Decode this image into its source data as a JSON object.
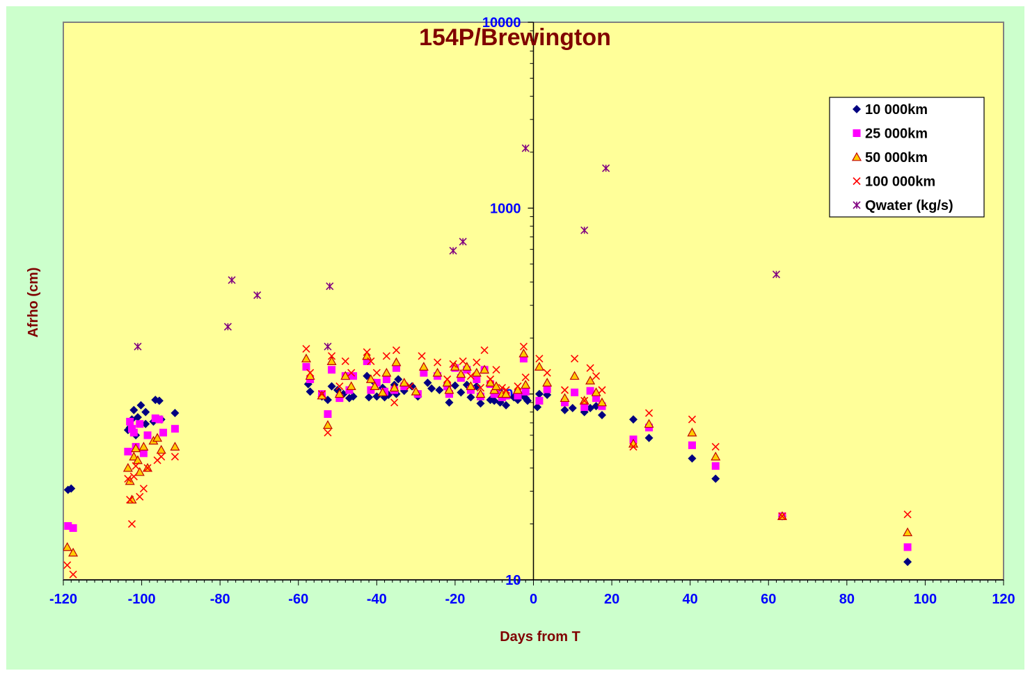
{
  "chart_data": {
    "type": "scatter",
    "title": "154P/Brewington",
    "xlabel": "Days from T",
    "ylabel": "Afrho (cm)",
    "xlim": [
      -120,
      120
    ],
    "ylim": [
      10,
      10000
    ],
    "y_scale": "log",
    "x_ticks": [
      "-120",
      "-100",
      "-80",
      "-60",
      "-40",
      "-20",
      "0",
      "20",
      "40",
      "60",
      "80",
      "100",
      "120"
    ],
    "y_ticks": [
      "10",
      "100",
      "1000",
      "10000"
    ],
    "grid": false,
    "legend_position": "top-right",
    "colors": {
      "outer_background": "#ccffcc",
      "plot_background": "#ffff99",
      "title": "#800000",
      "axis_label": "#800000",
      "tick_label": "#0000ff"
    },
    "series": [
      {
        "name": "10 000km",
        "marker": "diamond",
        "color": "#000080",
        "points": [
          [
            -118.8,
            30.5
          ],
          [
            -118,
            31
          ],
          [
            -103.5,
            64
          ],
          [
            -103,
            66
          ],
          [
            -102.5,
            73
          ],
          [
            -102,
            82
          ],
          [
            -101.5,
            60
          ],
          [
            -101,
            75
          ],
          [
            -100.2,
            87
          ],
          [
            -99,
            69
          ],
          [
            -99,
            80
          ],
          [
            -97,
            71
          ],
          [
            -96.5,
            93
          ],
          [
            -95.5,
            92
          ],
          [
            -95,
            73
          ],
          [
            -91.5,
            79
          ],
          [
            -57.5,
            113
          ],
          [
            -57,
            103
          ],
          [
            -54,
            97
          ],
          [
            -52.5,
            93
          ],
          [
            -51.5,
            110
          ],
          [
            -50,
            105
          ],
          [
            -49.5,
            96
          ],
          [
            -48.5,
            100
          ],
          [
            -47,
            95
          ],
          [
            -46,
            97
          ],
          [
            -42.5,
            125
          ],
          [
            -42,
            96
          ],
          [
            -40.5,
            115
          ],
          [
            -40,
            97
          ],
          [
            -38.5,
            108
          ],
          [
            -38,
            96
          ],
          [
            -37,
            99
          ],
          [
            -35.5,
            112
          ],
          [
            -35,
            100
          ],
          [
            -34.5,
            120
          ],
          [
            -33,
            104
          ],
          [
            -31,
            110
          ],
          [
            -29.5,
            97
          ],
          [
            -27,
            115
          ],
          [
            -26,
            107
          ],
          [
            -24,
            105
          ],
          [
            -21.5,
            90
          ],
          [
            -20,
            111
          ],
          [
            -18.5,
            102
          ],
          [
            -17,
            112
          ],
          [
            -16,
            96
          ],
          [
            -14.5,
            110
          ],
          [
            -13.5,
            89
          ],
          [
            -11,
            93
          ],
          [
            -10,
            92
          ],
          [
            -8.5,
            90
          ],
          [
            -8,
            94
          ],
          [
            -7,
            87
          ],
          [
            -5,
            96
          ],
          [
            -4,
            93
          ],
          [
            -3.5,
            97
          ],
          [
            -2.5,
            100
          ],
          [
            -2,
            95
          ],
          [
            -1.5,
            92
          ],
          [
            1,
            85
          ],
          [
            1.5,
            100
          ],
          [
            3.5,
            99
          ],
          [
            8,
            82
          ],
          [
            10,
            84
          ],
          [
            13,
            80
          ],
          [
            14.5,
            84
          ],
          [
            16,
            86
          ],
          [
            17.5,
            77
          ],
          [
            25.5,
            73
          ],
          [
            29.5,
            58
          ],
          [
            40.5,
            45
          ],
          [
            46.5,
            35
          ],
          [
            63.5,
            22
          ],
          [
            95.5,
            12.5
          ]
        ]
      },
      {
        "name": "25 000km",
        "marker": "square",
        "color": "#ff00ff",
        "points": [
          [
            -118.8,
            19.5
          ],
          [
            -117.5,
            19
          ],
          [
            -103.5,
            49
          ],
          [
            -103,
            71
          ],
          [
            -102.5,
            65
          ],
          [
            -102,
            62
          ],
          [
            -101.5,
            52
          ],
          [
            -100.5,
            69
          ],
          [
            -99.5,
            48
          ],
          [
            -98.5,
            60
          ],
          [
            -96.5,
            74
          ],
          [
            -95.5,
            73
          ],
          [
            -94.5,
            62
          ],
          [
            -91.5,
            65
          ],
          [
            -58,
            140
          ],
          [
            -57,
            120
          ],
          [
            -54,
            100
          ],
          [
            -52.5,
            78
          ],
          [
            -51.5,
            135
          ],
          [
            -49.5,
            95
          ],
          [
            -48,
            125
          ],
          [
            -47,
            105
          ],
          [
            -46,
            125
          ],
          [
            -42.5,
            150
          ],
          [
            -41.5,
            105
          ],
          [
            -40,
            115
          ],
          [
            -38,
            103
          ],
          [
            -37.5,
            120
          ],
          [
            -35.5,
            105
          ],
          [
            -35,
            138
          ],
          [
            -33,
            110
          ],
          [
            -29.5,
            100
          ],
          [
            -28,
            130
          ],
          [
            -24.5,
            125
          ],
          [
            -22,
            110
          ],
          [
            -21.5,
            100
          ],
          [
            -20,
            138
          ],
          [
            -18.5,
            122
          ],
          [
            -17,
            135
          ],
          [
            -16,
            105
          ],
          [
            -14.5,
            120
          ],
          [
            -13.5,
            97
          ],
          [
            -12.5,
            135
          ],
          [
            -11,
            113
          ],
          [
            -10,
            100
          ],
          [
            -9.5,
            100
          ],
          [
            -8,
            96
          ],
          [
            -7,
            98
          ],
          [
            -4,
            98
          ],
          [
            -2.5,
            155
          ],
          [
            -2,
            103
          ],
          [
            1.5,
            92
          ],
          [
            3.5,
            106
          ],
          [
            8,
            90
          ],
          [
            10.5,
            102
          ],
          [
            13,
            85
          ],
          [
            14.5,
            104
          ],
          [
            16,
            95
          ],
          [
            17.5,
            86
          ],
          [
            25.5,
            57
          ],
          [
            29.5,
            66
          ],
          [
            40.5,
            53
          ],
          [
            46.5,
            41
          ],
          [
            63.5,
            22
          ],
          [
            95.5,
            15
          ]
        ]
      },
      {
        "name": "50 000km",
        "marker": "triangle",
        "color": "#ffcc00",
        "edge_color": "#c00000",
        "points": [
          [
            -119,
            15
          ],
          [
            -117.5,
            14
          ],
          [
            -103.5,
            40
          ],
          [
            -103,
            34
          ],
          [
            -102.5,
            27
          ],
          [
            -102,
            46
          ],
          [
            -101.5,
            51
          ],
          [
            -101,
            44
          ],
          [
            -100.5,
            38
          ],
          [
            -99.5,
            52
          ],
          [
            -98.5,
            40
          ],
          [
            -97,
            56
          ],
          [
            -96,
            58
          ],
          [
            -95,
            50
          ],
          [
            -91.5,
            52
          ],
          [
            -58,
            155
          ],
          [
            -57,
            125
          ],
          [
            -54,
            98
          ],
          [
            -52.5,
            68
          ],
          [
            -51.5,
            150
          ],
          [
            -49.5,
            100
          ],
          [
            -48,
            125
          ],
          [
            -46.5,
            110
          ],
          [
            -42.5,
            160
          ],
          [
            -41.5,
            120
          ],
          [
            -40.5,
            110
          ],
          [
            -38.5,
            102
          ],
          [
            -37.5,
            130
          ],
          [
            -35.5,
            108
          ],
          [
            -35,
            148
          ],
          [
            -33,
            115
          ],
          [
            -30,
            103
          ],
          [
            -28,
            140
          ],
          [
            -24.5,
            130
          ],
          [
            -22,
            115
          ],
          [
            -21.5,
            105
          ],
          [
            -20,
            140
          ],
          [
            -18.5,
            128
          ],
          [
            -17,
            140
          ],
          [
            -16,
            110
          ],
          [
            -14.5,
            130
          ],
          [
            -13.5,
            100
          ],
          [
            -12.5,
            135
          ],
          [
            -11,
            115
          ],
          [
            -10,
            105
          ],
          [
            -9.5,
            110
          ],
          [
            -8,
            100
          ],
          [
            -7,
            100
          ],
          [
            -4,
            105
          ],
          [
            -2.5,
            165
          ],
          [
            -2,
            112
          ],
          [
            1.5,
            140
          ],
          [
            3.5,
            115
          ],
          [
            8,
            95
          ],
          [
            10.5,
            125
          ],
          [
            13,
            92
          ],
          [
            14.5,
            118
          ],
          [
            16,
            102
          ],
          [
            17.5,
            90
          ],
          [
            25.5,
            54
          ],
          [
            29.5,
            69
          ],
          [
            40.5,
            62
          ],
          [
            46.5,
            46
          ],
          [
            63.5,
            22
          ],
          [
            95.5,
            18
          ]
        ]
      },
      {
        "name": "100 000km",
        "marker": "x",
        "color": "#ff0000",
        "points": [
          [
            -119,
            12
          ],
          [
            -117.5,
            10.7
          ],
          [
            -103.5,
            35
          ],
          [
            -103,
            27
          ],
          [
            -102.5,
            20
          ],
          [
            -102,
            36
          ],
          [
            -101.5,
            41
          ],
          [
            -100.5,
            28
          ],
          [
            -99.5,
            31
          ],
          [
            -98.5,
            40
          ],
          [
            -96,
            44
          ],
          [
            -95,
            46
          ],
          [
            -91.5,
            46
          ],
          [
            -58,
            175
          ],
          [
            -57,
            130
          ],
          [
            -54,
            100
          ],
          [
            -52.5,
            62
          ],
          [
            -51.5,
            160
          ],
          [
            -49.5,
            110
          ],
          [
            -48,
            150
          ],
          [
            -46.5,
            130
          ],
          [
            -42.5,
            168
          ],
          [
            -41.5,
            150
          ],
          [
            -40,
            130
          ],
          [
            -37.5,
            160
          ],
          [
            -35.5,
            90
          ],
          [
            -35,
            172
          ],
          [
            -31.5,
            110
          ],
          [
            -28.5,
            160
          ],
          [
            -24.5,
            148
          ],
          [
            -22,
            120
          ],
          [
            -20.5,
            145
          ],
          [
            -18,
            150
          ],
          [
            -16,
            125
          ],
          [
            -14.5,
            148
          ],
          [
            -13.5,
            108
          ],
          [
            -12.5,
            172
          ],
          [
            -11,
            120
          ],
          [
            -9.5,
            135
          ],
          [
            -8,
            108
          ],
          [
            -7,
            105
          ],
          [
            -4,
            110
          ],
          [
            -2.5,
            180
          ],
          [
            -2,
            123
          ],
          [
            1.5,
            155
          ],
          [
            3.5,
            130
          ],
          [
            8,
            105
          ],
          [
            10.5,
            155
          ],
          [
            13,
            92
          ],
          [
            14.5,
            138
          ],
          [
            16,
            125
          ],
          [
            17.5,
            105
          ],
          [
            25.5,
            52
          ],
          [
            29.5,
            79
          ],
          [
            40.5,
            73
          ],
          [
            46.5,
            52
          ],
          [
            63.5,
            22
          ],
          [
            95.5,
            22.5
          ]
        ]
      },
      {
        "name": "Qwater (kg/s)",
        "marker": "star",
        "color": "#800080",
        "points": [
          [
            -101,
            180
          ],
          [
            -78,
            230
          ],
          [
            -77,
            410
          ],
          [
            -70.5,
            340
          ],
          [
            -52.5,
            180
          ],
          [
            -52,
            380
          ],
          [
            -20.5,
            590
          ],
          [
            -18,
            660
          ],
          [
            -2,
            2100
          ],
          [
            13,
            760
          ],
          [
            18.5,
            1640
          ],
          [
            62,
            440
          ]
        ]
      }
    ]
  }
}
